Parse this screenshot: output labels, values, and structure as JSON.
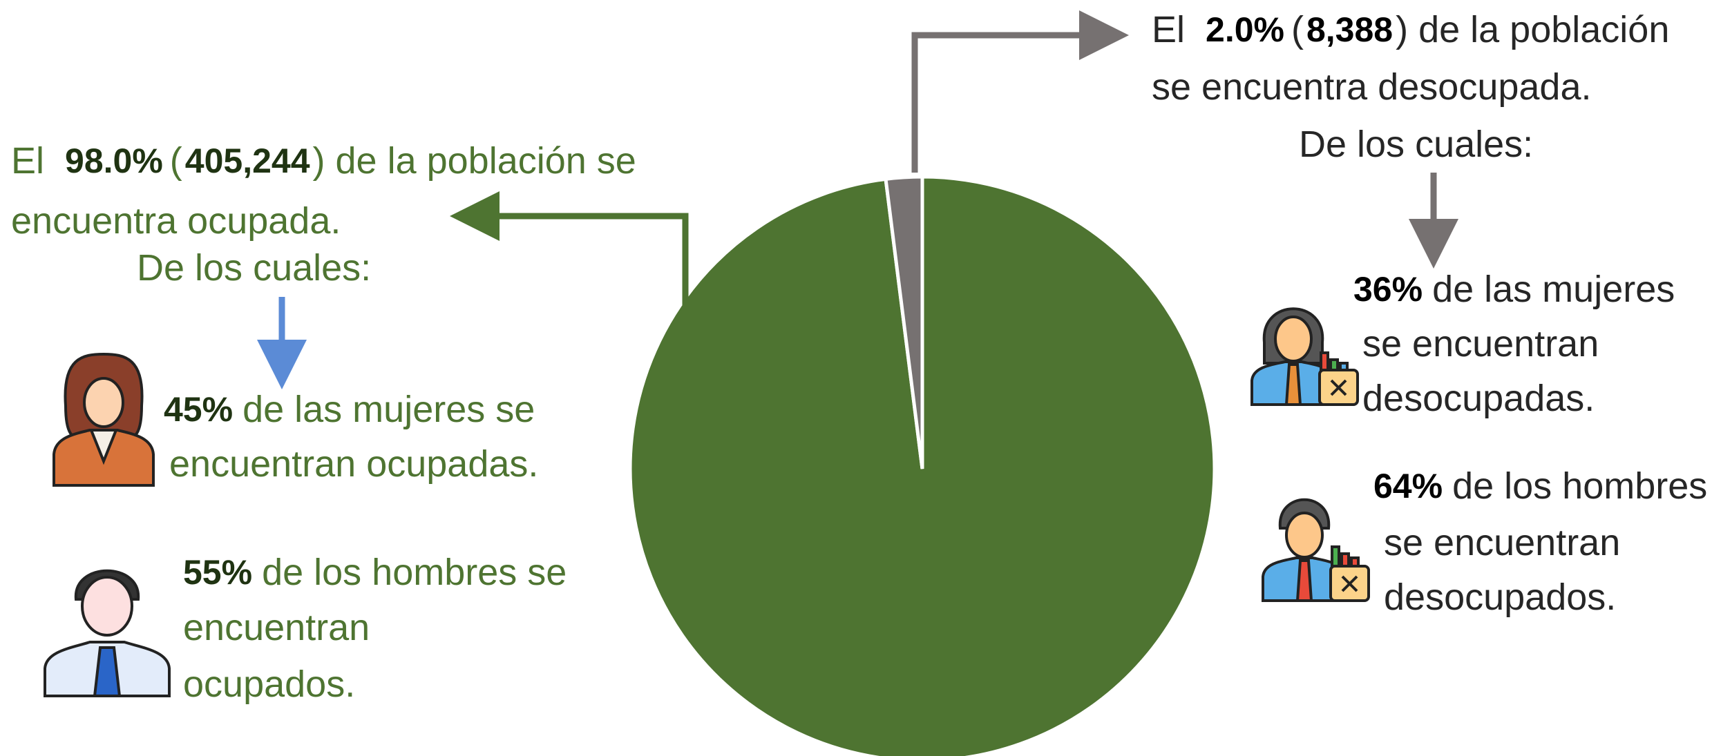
{
  "chart_data": {
    "type": "pie",
    "values": [
      98.0,
      2.0
    ],
    "value_labels": [
      "98.0%",
      "2.0%"
    ],
    "colors": [
      "#4e7431",
      "#767171"
    ],
    "counts": [
      405244,
      8388
    ],
    "count_labels": [
      "405,244",
      "8,388"
    ],
    "annotations": [
      {
        "lead": "El",
        "open": "(",
        "close": ") de la población se",
        "lines": [
          "encuentra ocupada."
        ],
        "intro": "De los cuales:",
        "groups": [
          {
            "value": 45,
            "label": "45%",
            "lines": [
              "de las mujeres se",
              "encuentran ocupadas."
            ]
          },
          {
            "value": 55,
            "label": "55%",
            "lines": [
              "de los hombres se",
              "encuentran",
              "ocupados."
            ]
          }
        ]
      },
      {
        "lead": "El",
        "open": "(",
        "close": ") de la población",
        "lines": [
          "se encuentra desocupada."
        ],
        "intro": "De los cuales:",
        "groups": [
          {
            "value": 36,
            "label": "36%",
            "lines": [
              "de las mujeres",
              "se encuentran",
              "desocupadas."
            ]
          },
          {
            "value": 64,
            "label": "64%",
            "lines": [
              "de los hombres",
              "se encuentran",
              "desocupados."
            ]
          }
        ]
      }
    ]
  }
}
